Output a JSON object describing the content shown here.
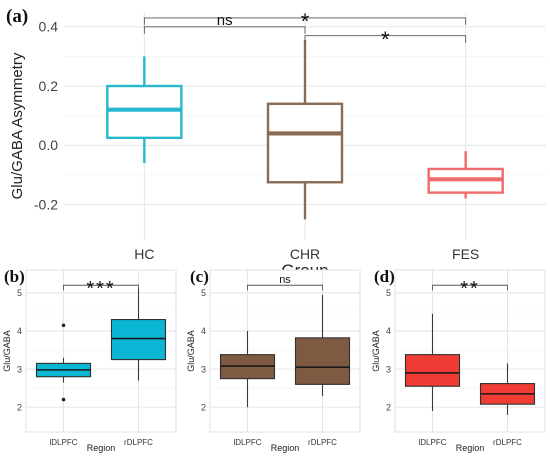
{
  "chart_data": [
    {
      "panel_label": "(a)",
      "type": "boxplot",
      "ylabel": "Glu/GABA Asymmetry",
      "xlabel": "Group",
      "ylim": [
        -0.32,
        0.45
      ],
      "yticks": [
        "-0.2",
        "0.0",
        "0.2",
        "0.4"
      ],
      "yticks_values": [
        -0.2,
        0.0,
        0.2,
        0.4
      ],
      "grid": true,
      "categories": [
        "HC",
        "CHR",
        "FES"
      ],
      "boxes": [
        {
          "category": "HC",
          "whisker_low": -0.06,
          "q1": 0.025,
          "median": 0.12,
          "q3": 0.2,
          "whisker_high": 0.3,
          "outliers": [],
          "color": "#26b8cd"
        },
        {
          "category": "CHR",
          "whisker_low": -0.25,
          "q1": -0.125,
          "median": 0.04,
          "q3": 0.14,
          "whisker_high": 0.355,
          "outliers": [],
          "color": "#8b6a52"
        },
        {
          "category": "FES",
          "whisker_low": -0.18,
          "q1": -0.16,
          "median": -0.115,
          "q3": -0.08,
          "whisker_high": -0.02,
          "outliers": [],
          "color": "#ef6b6b"
        }
      ],
      "significance": [
        {
          "from": "HC",
          "to": "FES",
          "label": "*",
          "level": 0.43
        },
        {
          "from": "HC",
          "to": "CHR",
          "label": "ns",
          "level": 0.4
        },
        {
          "from": "CHR",
          "to": "FES",
          "label": "*",
          "level": 0.37
        }
      ]
    },
    {
      "panel_label": "(b)",
      "type": "boxplot",
      "ylabel": "Glu/GABA",
      "xlabel": "Region",
      "ylim": [
        1.35,
        5.6
      ],
      "yticks": [
        "2",
        "3",
        "4",
        "5"
      ],
      "yticks_values": [
        2,
        3,
        4,
        5
      ],
      "grid": true,
      "categories": [
        "lDLPFC",
        "rDLPFC"
      ],
      "boxes": [
        {
          "category": "lDLPFC",
          "whisker_low": 2.65,
          "q1": 2.8,
          "median": 2.98,
          "q3": 3.15,
          "whisker_high": 3.3,
          "outliers": [
            2.2,
            4.15
          ],
          "color": "#0bb6d4"
        },
        {
          "category": "rDLPFC",
          "whisker_low": 2.7,
          "q1": 3.25,
          "median": 3.8,
          "q3": 4.3,
          "whisker_high": 5.15,
          "outliers": [],
          "color": "#0bb6d4"
        }
      ],
      "significance": [
        {
          "from": "lDLPFC",
          "to": "rDLPFC",
          "label": "***",
          "level": 5.2
        }
      ]
    },
    {
      "panel_label": "(c)",
      "type": "boxplot",
      "ylabel": "Glu/GABA",
      "xlabel": "Region",
      "ylim": [
        1.35,
        5.6
      ],
      "yticks": [
        "2",
        "3",
        "4",
        "5"
      ],
      "yticks_values": [
        2,
        3,
        4,
        5
      ],
      "grid": true,
      "categories": [
        "lDLPFC",
        "rDLPFC"
      ],
      "boxes": [
        {
          "category": "lDLPFC",
          "whisker_low": 2.0,
          "q1": 2.75,
          "median": 3.08,
          "q3": 3.38,
          "whisker_high": 4.0,
          "outliers": [],
          "color": "#7f5a42"
        },
        {
          "category": "rDLPFC",
          "whisker_low": 2.3,
          "q1": 2.6,
          "median": 3.05,
          "q3": 3.82,
          "whisker_high": 4.95,
          "outliers": [],
          "color": "#7f5a42"
        }
      ],
      "significance": [
        {
          "from": "lDLPFC",
          "to": "rDLPFC",
          "label": "ns",
          "level": 5.2
        }
      ]
    },
    {
      "panel_label": "(d)",
      "type": "boxplot",
      "ylabel": "Glu/GABA",
      "xlabel": "Region",
      "ylim": [
        1.35,
        5.6
      ],
      "yticks": [
        "2",
        "3",
        "4",
        "5"
      ],
      "yticks_values": [
        2,
        3,
        4,
        5
      ],
      "grid": true,
      "categories": [
        "lDLPFC",
        "rDLPFC"
      ],
      "boxes": [
        {
          "category": "lDLPFC",
          "whisker_low": 1.9,
          "q1": 2.55,
          "median": 2.9,
          "q3": 3.38,
          "whisker_high": 4.45,
          "outliers": [],
          "color": "#f03c34"
        },
        {
          "category": "rDLPFC",
          "whisker_low": 1.8,
          "q1": 2.08,
          "median": 2.35,
          "q3": 2.62,
          "whisker_high": 3.15,
          "outliers": [],
          "color": "#f03c34"
        }
      ],
      "significance": [
        {
          "from": "lDLPFC",
          "to": "rDLPFC",
          "label": "**",
          "level": 5.2
        }
      ]
    }
  ]
}
